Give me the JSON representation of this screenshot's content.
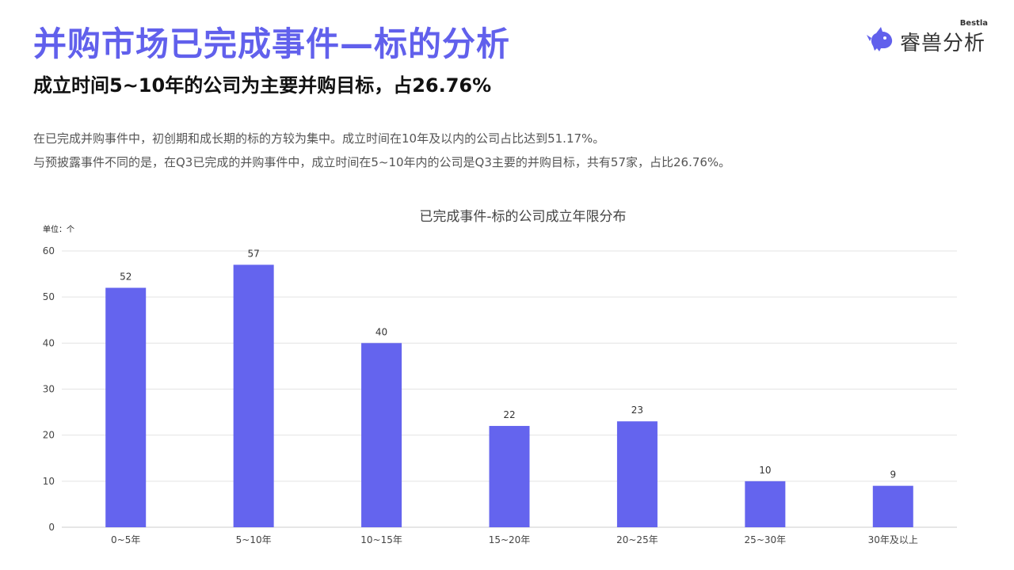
{
  "header": {
    "title": "并购市场已完成事件—标的分析",
    "subtitle": "成立时间5~10年的公司为主要并购目标，占26.76%"
  },
  "description": {
    "line1": "在已完成并购事件中，初创期和成长期的标的方较为集中。成立时间在10年及以内的公司占比达到51.17%。",
    "line2": "与预披露事件不同的是，在Q3已完成的并购事件中，成立时间在5~10年内的公司是Q3主要的并购目标，共有57家，占比26.76%。"
  },
  "logo": {
    "brand": "Bestla",
    "name": "睿兽分析",
    "icon": "unicorn-logo-icon",
    "color": "#6160ec"
  },
  "chart_data": {
    "type": "bar",
    "title": "已完成事件-标的公司成立年限分布",
    "unit_label": "单位：个",
    "categories": [
      "0~5年",
      "5~10年",
      "10~15年",
      "15~20年",
      "20~25年",
      "25~30年",
      "30年及以上"
    ],
    "values": [
      52,
      57,
      40,
      22,
      23,
      10,
      9
    ],
    "ylim": [
      0,
      60
    ],
    "yticks": [
      0,
      10,
      20,
      30,
      40,
      50,
      60
    ],
    "grid": true,
    "bar_color": "#6464ee",
    "xlabel": "",
    "ylabel": ""
  }
}
